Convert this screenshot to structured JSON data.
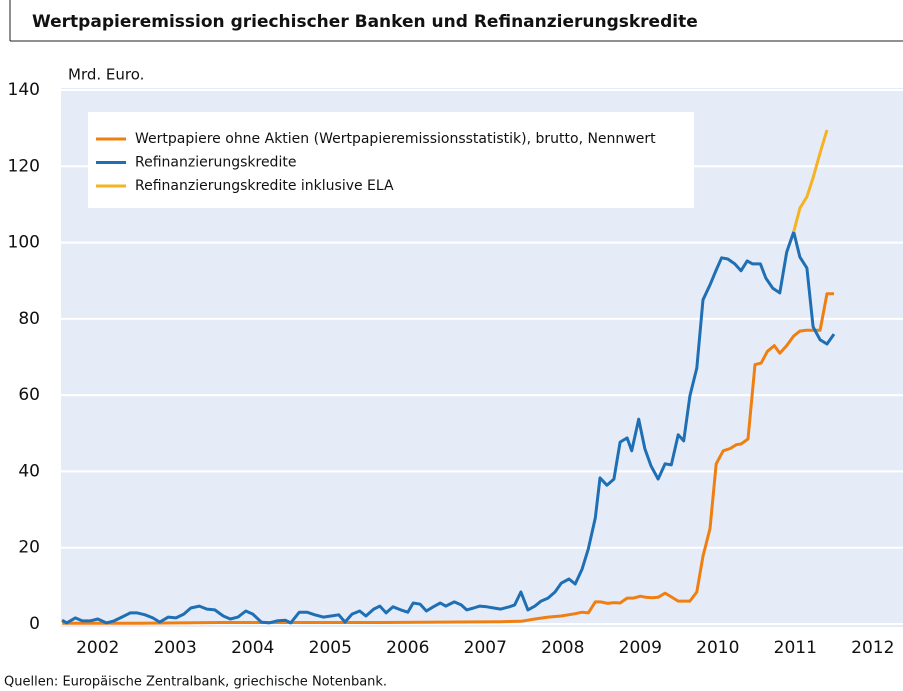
{
  "chart_data": {
    "type": "line",
    "title": "Wertpapieremission griechischer Banken und Refinanzierungskredite",
    "ylabel": "Mrd. Euro.",
    "source": "Quellen: Europäische Zentralbank, griechische Notenbank.",
    "xlim": [
      2002,
      2012.89
    ],
    "xticks": [
      {
        "value": 2002.5,
        "label": "2002"
      },
      {
        "value": 2003.5,
        "label": "2003"
      },
      {
        "value": 2004.5,
        "label": "2004"
      },
      {
        "value": 2005.5,
        "label": "2005"
      },
      {
        "value": 2006.5,
        "label": "2006"
      },
      {
        "value": 2007.5,
        "label": "2007"
      },
      {
        "value": 2008.5,
        "label": "2008"
      },
      {
        "value": 2009.5,
        "label": "2009"
      },
      {
        "value": 2010.5,
        "label": "2010"
      },
      {
        "value": 2011.5,
        "label": "2011"
      },
      {
        "value": 2012.5,
        "label": "2012"
      }
    ],
    "ylim": [
      0,
      140
    ],
    "yticks": [
      0,
      20,
      40,
      60,
      80,
      100,
      120,
      140
    ],
    "grid": true,
    "legend": "upper left",
    "background": "#e6ecf7",
    "series": [
      {
        "name": "Wertpapiere ohne Aktien (Wertpapieremissionsstatistik), brutto, Nennwert",
        "color": "#f07f12",
        "x": [
          2002.04,
          2003.05,
          2004.08,
          2005.11,
          2006.14,
          2006.92,
          2007.69,
          2007.96,
          2008.14,
          2008.31,
          2008.48,
          2008.66,
          2008.75,
          2008.83,
          2008.92,
          2008.99,
          2009.08,
          2009.16,
          2009.24,
          2009.33,
          2009.41,
          2009.5,
          2009.57,
          2009.65,
          2009.73,
          2009.82,
          2009.9,
          2009.99,
          2010.06,
          2010.14,
          2010.23,
          2010.31,
          2010.4,
          2010.48,
          2010.57,
          2010.66,
          2010.74,
          2010.8,
          2010.89,
          2010.98,
          2011.06,
          2011.14,
          2011.23,
          2011.3,
          2011.39,
          2011.48,
          2011.56,
          2011.64,
          2011.73,
          2011.82,
          2011.91,
          2012.0
        ],
        "values": [
          0.2,
          0.2,
          0.4,
          0.4,
          0.4,
          0.5,
          0.6,
          0.7,
          1.3,
          1.8,
          2.1,
          2.7,
          3.1,
          2.9,
          5.8,
          5.8,
          5.4,
          5.6,
          5.5,
          6.8,
          6.8,
          7.3,
          7.0,
          6.9,
          7.0,
          8.1,
          7.1,
          6.0,
          6.0,
          6.0,
          8.4,
          17.8,
          25,
          42,
          45.4,
          46,
          47,
          47.2,
          48.5,
          68,
          68.4,
          71.5,
          73,
          71,
          73,
          75.5,
          76.8,
          77,
          77,
          77,
          86.6,
          86.6
        ]
      },
      {
        "name": "Refinanzierungskredite",
        "color": "#1f6fb5",
        "x": [
          2002.04,
          2002.1,
          2002.21,
          2002.3,
          2002.4,
          2002.5,
          2002.61,
          2002.71,
          2002.81,
          2002.92,
          2003.01,
          2003.11,
          2003.21,
          2003.3,
          2003.41,
          2003.51,
          2003.61,
          2003.7,
          2003.81,
          2003.91,
          2004.01,
          2004.12,
          2004.21,
          2004.31,
          2004.41,
          2004.5,
          2004.61,
          2004.71,
          2004.81,
          2004.92,
          2004.99,
          2005.1,
          2005.2,
          2005.3,
          2005.41,
          2005.51,
          2005.61,
          2005.69,
          2005.78,
          2005.88,
          2005.96,
          2006.06,
          2006.14,
          2006.22,
          2006.31,
          2006.41,
          2006.5,
          2006.57,
          2006.66,
          2006.74,
          2006.83,
          2006.92,
          2006.99,
          2007.1,
          2007.19,
          2007.26,
          2007.35,
          2007.43,
          2007.52,
          2007.61,
          2007.7,
          2007.81,
          2007.88,
          2007.96,
          2008.05,
          2008.14,
          2008.22,
          2008.31,
          2008.4,
          2008.48,
          2008.58,
          2008.66,
          2008.75,
          2008.83,
          2008.92,
          2008.98,
          2009.07,
          2009.16,
          2009.24,
          2009.33,
          2009.39,
          2009.48,
          2009.56,
          2009.64,
          2009.73,
          2009.82,
          2009.9,
          2009.99,
          2010.06,
          2010.14,
          2010.23,
          2010.31,
          2010.4,
          2010.48,
          2010.55,
          2010.63,
          2010.72,
          2010.8,
          2010.88,
          2010.95,
          2011.05,
          2011.12,
          2011.21,
          2011.3,
          2011.39,
          2011.48,
          2011.56,
          2011.65,
          2011.73,
          2011.82,
          2011.91,
          2012.0
        ],
        "values": [
          1,
          0.3,
          1.6,
          0.8,
          0.8,
          1.3,
          0.3,
          0.8,
          1.8,
          2.9,
          2.9,
          2.4,
          1.6,
          0.5,
          1.8,
          1.6,
          2.6,
          4.2,
          4.7,
          3.9,
          3.7,
          2.1,
          1.3,
          1.8,
          3.4,
          2.6,
          0.5,
          0.3,
          0.8,
          1,
          0.3,
          3.1,
          3.1,
          2.4,
          1.8,
          2.1,
          2.4,
          0.5,
          2.6,
          3.4,
          2.1,
          3.9,
          4.7,
          2.9,
          4.5,
          3.7,
          3.1,
          5.5,
          5.2,
          3.4,
          4.5,
          5.5,
          4.7,
          5.8,
          5,
          3.7,
          4.2,
          4.7,
          4.5,
          4.2,
          3.9,
          4.5,
          5,
          8.4,
          3.7,
          4.7,
          6,
          6.8,
          8.4,
          10.7,
          11.8,
          10.5,
          14.4,
          19.7,
          27.8,
          38.3,
          36.4,
          38,
          47.7,
          48.8,
          45.4,
          53.7,
          45.9,
          41.4,
          38,
          42,
          41.7,
          49.6,
          48,
          59.8,
          67.1,
          85,
          88.9,
          92.8,
          96,
          95.7,
          94.4,
          92.6,
          95.2,
          94.4,
          94.4,
          90.7,
          88,
          86.8,
          97.5,
          102.8,
          96.2,
          93.3,
          77.9,
          74.5,
          73.4,
          76
        ]
      },
      {
        "name": "Refinanzierungskredite inklusive ELA",
        "color": "#f5b324",
        "x": [
          2011.48,
          2011.56,
          2011.65,
          2011.73,
          2011.82,
          2011.91
        ],
        "values": [
          102.8,
          109,
          112,
          117,
          123.5,
          129.5
        ]
      }
    ]
  }
}
